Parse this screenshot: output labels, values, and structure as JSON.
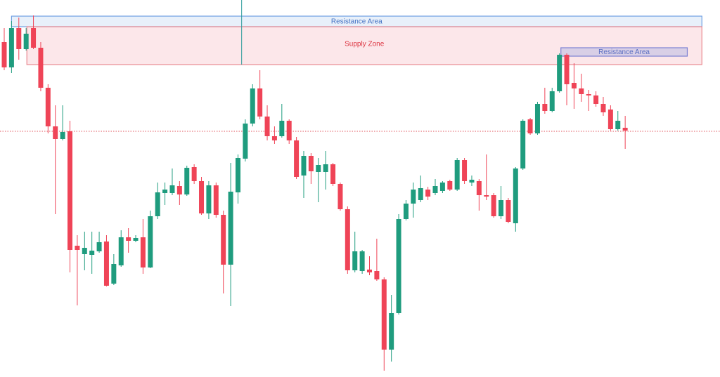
{
  "chart_data": {
    "type": "candlestick",
    "up_color": "#1f9c7e",
    "down_color": "#ef4457",
    "ylim": [
      0,
      537
    ],
    "open": [
      477,
      441,
      497,
      467,
      497,
      469,
      412,
      357,
      339,
      350,
      187,
      175,
      174,
      179,
      193,
      133,
      159,
      199,
      194,
      199,
      156,
      229,
      262,
      262,
      272,
      260,
      299,
      279,
      233,
      273,
      231,
      160,
      263,
      311,
      361,
      411,
      371,
      343,
      343,
      365,
      337,
      287,
      315,
      292,
      292,
      303,
      275,
      239,
      152,
      151,
      153,
      151,
      139,
      39,
      91,
      225,
      247,
      252,
      267,
      262,
      265,
      279,
      267,
      309,
      277,
      279,
      259,
      259,
      229,
      252,
      219,
      297,
      367,
      347,
      389,
      379,
      407,
      459,
      419,
      411,
      403,
      401,
      389,
      381,
      353,
      355
    ],
    "high": [
      497,
      507,
      512,
      497,
      515,
      477,
      417,
      387,
      387,
      365,
      202,
      207,
      207,
      207,
      202,
      175,
      209,
      212,
      202,
      225,
      237,
      277,
      277,
      297,
      279,
      301,
      303,
      285,
      279,
      277,
      237,
      305,
      317,
      367,
      417,
      437,
      387,
      357,
      389,
      367,
      342,
      322,
      319,
      312,
      322,
      305,
      277,
      243,
      207,
      181,
      172,
      197,
      142,
      117,
      232,
      252,
      277,
      287,
      271,
      282,
      279,
      281,
      312,
      312,
      287,
      282,
      317,
      262,
      272,
      255,
      299,
      367,
      369,
      392,
      412,
      412,
      461,
      461,
      447,
      432,
      409,
      407,
      399,
      387,
      379,
      372
    ],
    "low": [
      437,
      433,
      452,
      465,
      467,
      407,
      347,
      232,
      337,
      149,
      102,
      152,
      147,
      177,
      129,
      131,
      157,
      177,
      192,
      147,
      155,
      225,
      245,
      259,
      245,
      258,
      275,
      231,
      225,
      227,
      119,
      101,
      247,
      307,
      357,
      367,
      337,
      332,
      341,
      332,
      282,
      255,
      275,
      249,
      267,
      272,
      237,
      147,
      149,
      147,
      145,
      137,
      9,
      22,
      89,
      223,
      227,
      249,
      252,
      259,
      262,
      265,
      265,
      275,
      272,
      237,
      252,
      227,
      225,
      219,
      207,
      295,
      345,
      345,
      375,
      377,
      405,
      387,
      382,
      392,
      379,
      385,
      372,
      351,
      351,
      325
    ],
    "close": [
      441,
      497,
      467,
      489,
      469,
      412,
      357,
      339,
      349,
      181,
      181,
      184,
      180,
      192,
      130,
      161,
      199,
      194,
      198,
      156,
      229,
      263,
      267,
      273,
      260,
      298,
      279,
      233,
      273,
      231,
      160,
      264,
      312,
      361,
      411,
      371,
      343,
      337,
      365,
      337,
      285,
      315,
      293,
      302,
      303,
      275,
      239,
      152,
      179,
      179,
      149,
      139,
      39,
      91,
      225,
      247,
      267,
      269,
      257,
      272,
      277,
      267,
      309,
      279,
      281,
      259,
      257,
      229,
      252,
      221,
      297,
      365,
      347,
      389,
      379,
      407,
      459,
      417,
      411,
      403,
      401,
      389,
      377,
      353,
      365,
      351
    ],
    "zones": [
      {
        "label": "Resistance Area",
        "low": 499,
        "high": 514,
        "start": 1,
        "end": 95.5,
        "fill": "rgba(190,212,242,0.35)",
        "stroke": "#6f9fe2",
        "text_color": "#3f6fc2"
      },
      {
        "label": "Supply Zone",
        "low": 445,
        "high": 499,
        "start": 3.1,
        "end": 95.5,
        "fill": "rgba(245,170,178,0.28)",
        "stroke": "#ea8a92",
        "text_color": "#dc3440"
      },
      {
        "label": "Resistance Area",
        "low": 457,
        "high": 469,
        "start": 76.2,
        "end": 93.5,
        "fill": "rgba(185,188,225,0.55)",
        "stroke": "#7b80d2",
        "text_color": "#5b6fc2"
      }
    ],
    "hline": 350,
    "hline_color": "#e0545c",
    "vline_x": 32.5,
    "vline_color": "#2a9a9a"
  }
}
